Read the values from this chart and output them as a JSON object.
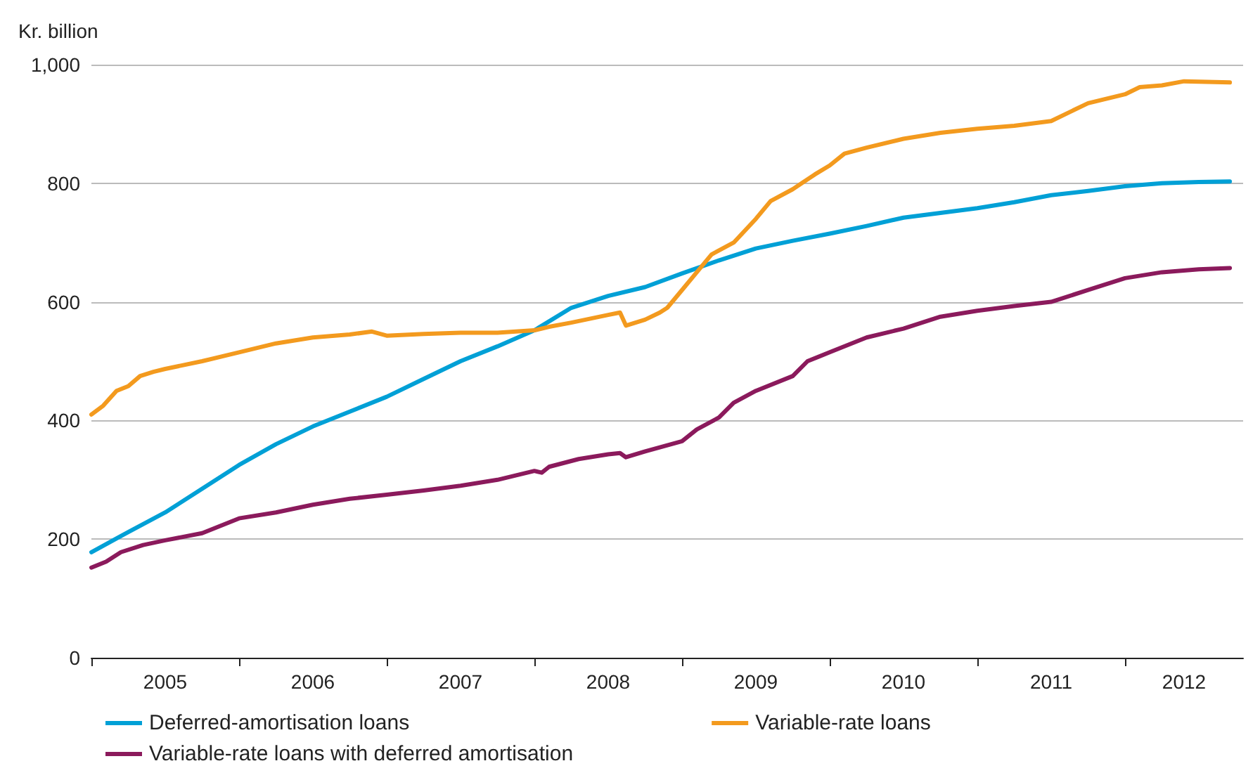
{
  "chart_data": {
    "type": "line",
    "ylabel": "Kr. billion",
    "xlim": [
      2005,
      2012.8
    ],
    "xticks": [
      {
        "value": 2005,
        "label": null
      },
      {
        "value": 2006,
        "label": null
      },
      {
        "value": 2007,
        "label": null
      },
      {
        "value": 2008,
        "label": null
      },
      {
        "value": 2009,
        "label": null
      },
      {
        "value": 2010,
        "label": null
      },
      {
        "value": 2011,
        "label": null
      },
      {
        "value": 2012,
        "label": null
      },
      {
        "value": 2005.5,
        "label": "2005"
      },
      {
        "value": 2006.5,
        "label": "2006"
      },
      {
        "value": 2007.5,
        "label": "2007"
      },
      {
        "value": 2008.5,
        "label": "2008"
      },
      {
        "value": 2009.5,
        "label": "2009"
      },
      {
        "value": 2010.5,
        "label": "2010"
      },
      {
        "value": 2011.5,
        "label": "2011"
      },
      {
        "value": 2012.4,
        "label": "2012"
      }
    ],
    "ylim": [
      0,
      1000
    ],
    "yticks": [
      {
        "value": 0,
        "label": "0"
      },
      {
        "value": 200,
        "label": "200"
      },
      {
        "value": 400,
        "label": "400"
      },
      {
        "value": 600,
        "label": "600"
      },
      {
        "value": 800,
        "label": "800"
      },
      {
        "value": 1000,
        "label": "1,000"
      }
    ],
    "grid": "y",
    "legend": "bottom",
    "marker": "none",
    "line_style": "solid",
    "series": [
      {
        "name": "Deferred-amortisation loans",
        "color": "#00a0d6",
        "x": [
          2005,
          2005.25,
          2005.5,
          2005.75,
          2006,
          2006.25,
          2006.5,
          2006.75,
          2007,
          2007.25,
          2007.5,
          2007.75,
          2008,
          2008.25,
          2008.5,
          2008.75,
          2009,
          2009.25,
          2009.5,
          2009.75,
          2010,
          2010.25,
          2010.5,
          2010.75,
          2011,
          2011.25,
          2011.5,
          2011.75,
          2012,
          2012.25,
          2012.5,
          2012.71
        ],
        "values": [
          178,
          212,
          245,
          285,
          325,
          360,
          390,
          415,
          440,
          470,
          500,
          525,
          552,
          590,
          610,
          625,
          648,
          670,
          690,
          703,
          715,
          728,
          742,
          750,
          758,
          768,
          780,
          787,
          795,
          800,
          802,
          803
        ]
      },
      {
        "name": "Variable-rate loans",
        "color": "#f39a1e",
        "x": [
          2005,
          2005.08,
          2005.17,
          2005.25,
          2005.33,
          2005.42,
          2005.5,
          2005.75,
          2006,
          2006.25,
          2006.5,
          2006.75,
          2006.9,
          2007,
          2007.25,
          2007.5,
          2007.75,
          2008,
          2008.1,
          2008.25,
          2008.5,
          2008.58,
          2008.62,
          2008.75,
          2008.85,
          2008.9,
          2009,
          2009.1,
          2009.2,
          2009.35,
          2009.5,
          2009.6,
          2009.75,
          2009.9,
          2010,
          2010.1,
          2010.25,
          2010.5,
          2010.75,
          2011,
          2011.25,
          2011.5,
          2011.75,
          2012,
          2012.1,
          2012.25,
          2012.4,
          2012.71
        ],
        "values": [
          410,
          425,
          450,
          458,
          475,
          482,
          487,
          500,
          515,
          530,
          540,
          545,
          550,
          543,
          546,
          548,
          548,
          552,
          558,
          565,
          578,
          582,
          560,
          570,
          582,
          590,
          620,
          650,
          680,
          700,
          740,
          770,
          790,
          815,
          830,
          850,
          860,
          875,
          885,
          892,
          897,
          905,
          935,
          950,
          962,
          965,
          972,
          970
        ]
      },
      {
        "name": "Variable-rate loans with deferred amortisation",
        "color": "#8b1a5c",
        "x": [
          2005,
          2005.1,
          2005.2,
          2005.35,
          2005.5,
          2005.75,
          2006,
          2006.25,
          2006.5,
          2006.75,
          2007,
          2007.25,
          2007.5,
          2007.75,
          2008,
          2008.05,
          2008.1,
          2008.3,
          2008.5,
          2008.58,
          2008.62,
          2008.75,
          2009,
          2009.1,
          2009.25,
          2009.35,
          2009.5,
          2009.75,
          2009.85,
          2010,
          2010.25,
          2010.5,
          2010.75,
          2011,
          2011.25,
          2011.5,
          2011.75,
          2012,
          2012.25,
          2012.5,
          2012.71
        ],
        "values": [
          152,
          162,
          178,
          190,
          198,
          210,
          235,
          245,
          258,
          268,
          275,
          282,
          290,
          300,
          315,
          312,
          322,
          335,
          343,
          345,
          338,
          348,
          365,
          385,
          405,
          430,
          450,
          475,
          500,
          515,
          540,
          555,
          575,
          585,
          593,
          600,
          620,
          640,
          650,
          655,
          657
        ]
      }
    ]
  }
}
